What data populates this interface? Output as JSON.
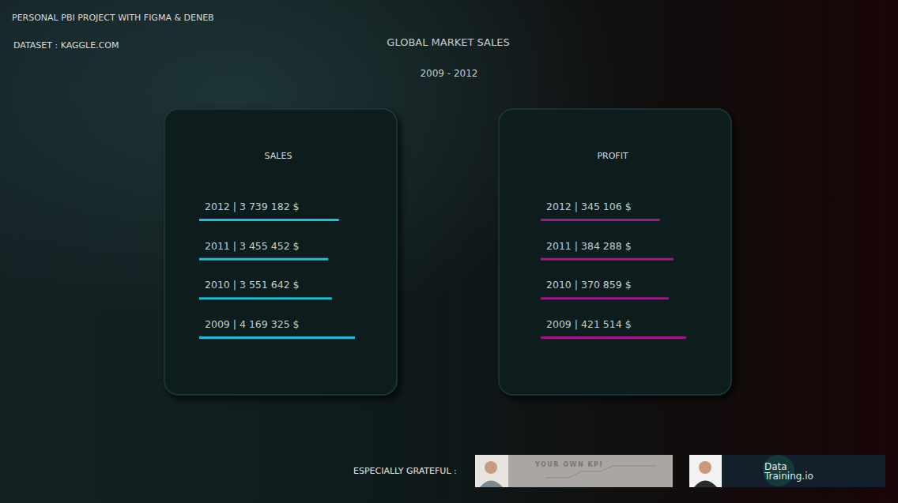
{
  "header": {
    "title": "PERSONAL PBI PROJECT WITH FIGMA & DENEB",
    "dataset": "DATASET : KAGGLE.COM",
    "main_title": "GLOBAL MARKET SALES",
    "subtitle": "2009 - 2012"
  },
  "chart_data": [
    {
      "type": "bar",
      "orientation": "horizontal",
      "title": "SALES",
      "categories": [
        "2012",
        "2011",
        "2010",
        "2009"
      ],
      "values": [
        3739182,
        3455452,
        3551642,
        4169325
      ],
      "value_labels": [
        "2012 | 3 739 182 $",
        "2011 | 3 455 452 $",
        "2010 | 3 551 642 $",
        "2009 | 4 169 325 $"
      ],
      "color": "#1ec0dc",
      "xlim": [
        0,
        4169325
      ],
      "data_labels": true,
      "tick_labels": false,
      "grid": false
    },
    {
      "type": "bar",
      "orientation": "horizontal",
      "title": "PROFIT",
      "categories": [
        "2012",
        "2011",
        "2010",
        "2009"
      ],
      "values": [
        345106,
        384288,
        370859,
        421514
      ],
      "value_labels": [
        "2012 | 345 106 $",
        "2011 | 384 288 $",
        "2010 | 370 859 $",
        "2009 | 421 514 $"
      ],
      "color": "#a8148c",
      "xlim": [
        0,
        421514
      ],
      "data_labels": true,
      "tick_labels": false,
      "grid": false
    }
  ],
  "footer": {
    "label": "ESPECIALLY GRATEFUL :",
    "banners": [
      {
        "text": "YOUR OWN KPI"
      },
      {
        "lines": [
          "Data",
          "Training.io"
        ]
      }
    ]
  }
}
